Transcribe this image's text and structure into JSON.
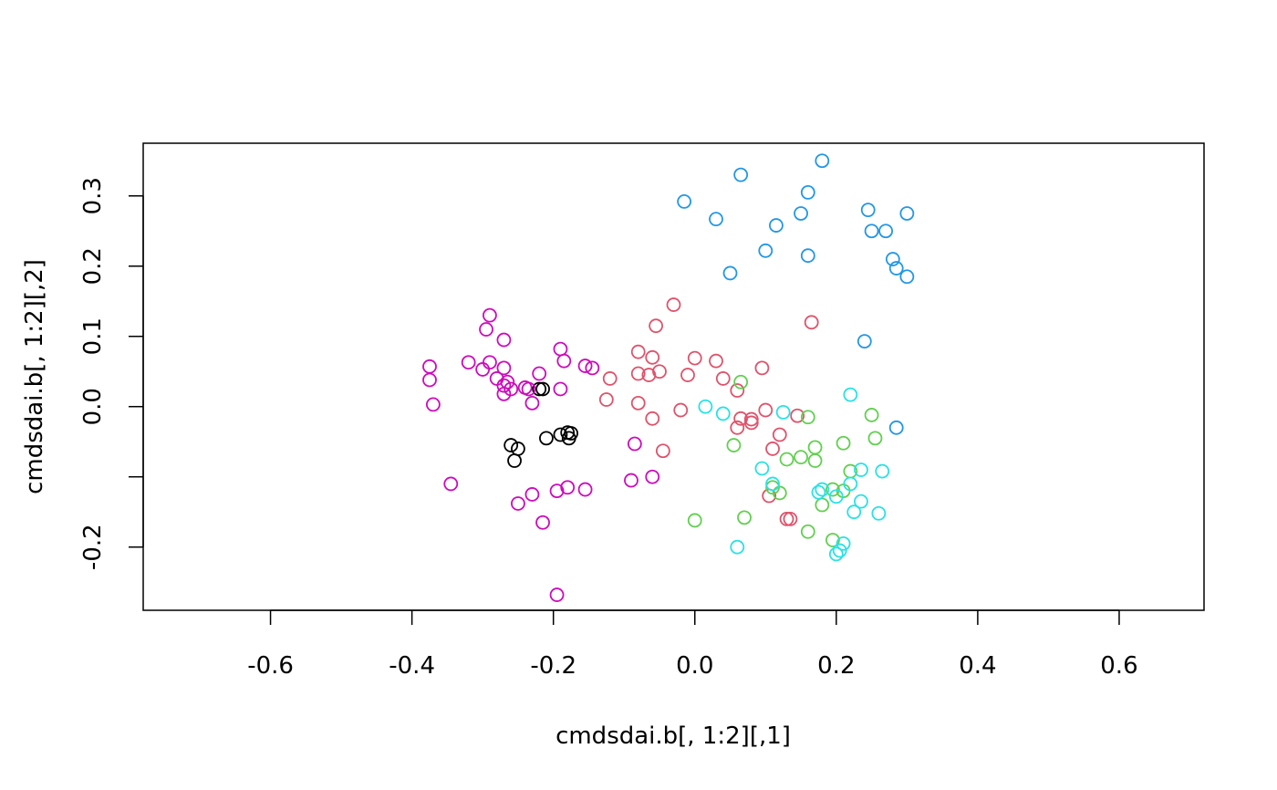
{
  "chart_data": {
    "type": "scatter",
    "title": "",
    "xlabel": "cmdsdai.b[, 1:2][,1]",
    "ylabel": "cmdsdai.b[, 1:2][,2]",
    "xlim": [
      -0.78,
      0.72
    ],
    "ylim": [
      -0.29,
      0.375
    ],
    "x_ticks": [
      -0.6,
      -0.4,
      -0.2,
      0.0,
      0.2,
      0.4,
      0.6
    ],
    "x_tick_labels": [
      "-0.6",
      "-0.4",
      "-0.2",
      "0.0",
      "0.2",
      "0.4",
      "0.6"
    ],
    "y_ticks": [
      -0.2,
      -0.1,
      0.0,
      0.1,
      0.2,
      0.3
    ],
    "y_tick_labels": [
      "-0.2",
      "",
      "0.0",
      "0.1",
      "0.2",
      "0.3"
    ],
    "grid": false,
    "legend": "none",
    "series": [
      {
        "color": "#000000",
        "points": [
          [
            -0.22,
            0.025
          ],
          [
            -0.215,
            0.025
          ],
          [
            -0.26,
            -0.055
          ],
          [
            -0.25,
            -0.06
          ],
          [
            -0.255,
            -0.077
          ],
          [
            -0.21,
            -0.045
          ],
          [
            -0.19,
            -0.04
          ],
          [
            -0.18,
            -0.037
          ],
          [
            -0.175,
            -0.038
          ],
          [
            -0.178,
            -0.045
          ]
        ]
      },
      {
        "color": "#DF536B",
        "points": [
          [
            -0.03,
            0.145
          ],
          [
            -0.055,
            0.115
          ],
          [
            -0.08,
            0.078
          ],
          [
            -0.06,
            0.07
          ],
          [
            0.0,
            0.069
          ],
          [
            0.03,
            0.065
          ],
          [
            -0.08,
            0.047
          ],
          [
            -0.065,
            0.045
          ],
          [
            -0.05,
            0.05
          ],
          [
            -0.01,
            0.045
          ],
          [
            0.04,
            0.04
          ],
          [
            0.095,
            0.055
          ],
          [
            -0.12,
            0.04
          ],
          [
            -0.125,
            0.01
          ],
          [
            -0.08,
            0.005
          ],
          [
            -0.02,
            -0.005
          ],
          [
            0.06,
            0.023
          ],
          [
            0.1,
            -0.005
          ],
          [
            0.145,
            -0.013
          ],
          [
            -0.06,
            -0.017
          ],
          [
            0.065,
            -0.017
          ],
          [
            0.08,
            -0.018
          ],
          [
            0.08,
            -0.023
          ],
          [
            0.06,
            -0.03
          ],
          [
            0.12,
            -0.04
          ],
          [
            -0.045,
            -0.063
          ],
          [
            0.11,
            -0.06
          ],
          [
            0.105,
            -0.127
          ],
          [
            0.13,
            -0.16
          ],
          [
            0.135,
            -0.16
          ],
          [
            0.165,
            0.12
          ]
        ]
      },
      {
        "color": "#61D04F",
        "points": [
          [
            0.065,
            0.035
          ],
          [
            0.16,
            -0.015
          ],
          [
            0.25,
            -0.012
          ],
          [
            0.255,
            -0.045
          ],
          [
            0.21,
            -0.052
          ],
          [
            0.17,
            -0.058
          ],
          [
            0.055,
            -0.055
          ],
          [
            0.15,
            -0.072
          ],
          [
            0.13,
            -0.075
          ],
          [
            0.17,
            -0.077
          ],
          [
            0.22,
            -0.092
          ],
          [
            0.11,
            -0.115
          ],
          [
            0.12,
            -0.123
          ],
          [
            0.195,
            -0.118
          ],
          [
            0.21,
            -0.12
          ],
          [
            0.18,
            -0.14
          ],
          [
            0.07,
            -0.158
          ],
          [
            0.0,
            -0.162
          ],
          [
            0.16,
            -0.178
          ],
          [
            0.195,
            -0.19
          ]
        ]
      },
      {
        "color": "#2297E6",
        "points": [
          [
            -0.015,
            0.292
          ],
          [
            0.065,
            0.33
          ],
          [
            0.18,
            0.35
          ],
          [
            0.16,
            0.305
          ],
          [
            0.03,
            0.267
          ],
          [
            0.115,
            0.258
          ],
          [
            0.15,
            0.275
          ],
          [
            0.245,
            0.28
          ],
          [
            0.3,
            0.275
          ],
          [
            0.25,
            0.25
          ],
          [
            0.27,
            0.25
          ],
          [
            0.1,
            0.222
          ],
          [
            0.16,
            0.215
          ],
          [
            0.28,
            0.21
          ],
          [
            0.285,
            0.197
          ],
          [
            0.05,
            0.19
          ],
          [
            0.3,
            0.185
          ],
          [
            0.24,
            0.093
          ],
          [
            0.285,
            -0.03
          ]
        ]
      },
      {
        "color": "#28E2E5",
        "points": [
          [
            0.015,
            0.0
          ],
          [
            0.04,
            -0.01
          ],
          [
            0.125,
            -0.008
          ],
          [
            0.22,
            0.017
          ],
          [
            0.095,
            -0.088
          ],
          [
            0.235,
            -0.09
          ],
          [
            0.265,
            -0.092
          ],
          [
            0.11,
            -0.11
          ],
          [
            0.18,
            -0.118
          ],
          [
            0.175,
            -0.122
          ],
          [
            0.22,
            -0.11
          ],
          [
            0.2,
            -0.128
          ],
          [
            0.235,
            -0.135
          ],
          [
            0.225,
            -0.15
          ],
          [
            0.26,
            -0.152
          ],
          [
            0.06,
            -0.2
          ],
          [
            0.21,
            -0.195
          ],
          [
            0.205,
            -0.205
          ],
          [
            0.2,
            -0.21
          ]
        ]
      },
      {
        "color": "#CD0BBC",
        "points": [
          [
            -0.29,
            0.13
          ],
          [
            -0.295,
            0.11
          ],
          [
            -0.27,
            0.095
          ],
          [
            -0.19,
            0.082
          ],
          [
            -0.185,
            0.065
          ],
          [
            -0.32,
            0.063
          ],
          [
            -0.29,
            0.063
          ],
          [
            -0.155,
            0.058
          ],
          [
            -0.145,
            0.055
          ],
          [
            -0.375,
            0.057
          ],
          [
            -0.3,
            0.053
          ],
          [
            -0.27,
            0.055
          ],
          [
            -0.22,
            0.047
          ],
          [
            -0.28,
            0.04
          ],
          [
            -0.265,
            0.035
          ],
          [
            -0.375,
            0.038
          ],
          [
            -0.27,
            0.03
          ],
          [
            -0.26,
            0.025
          ],
          [
            -0.24,
            0.027
          ],
          [
            -0.235,
            0.025
          ],
          [
            -0.19,
            0.025
          ],
          [
            -0.27,
            0.018
          ],
          [
            -0.23,
            0.005
          ],
          [
            -0.37,
            0.003
          ],
          [
            -0.085,
            -0.053
          ],
          [
            -0.09,
            -0.105
          ],
          [
            -0.06,
            -0.1
          ],
          [
            -0.345,
            -0.11
          ],
          [
            -0.18,
            -0.115
          ],
          [
            -0.195,
            -0.12
          ],
          [
            -0.155,
            -0.118
          ],
          [
            -0.23,
            -0.125
          ],
          [
            -0.25,
            -0.138
          ],
          [
            -0.215,
            -0.165
          ],
          [
            -0.195,
            -0.268
          ]
        ]
      }
    ]
  }
}
